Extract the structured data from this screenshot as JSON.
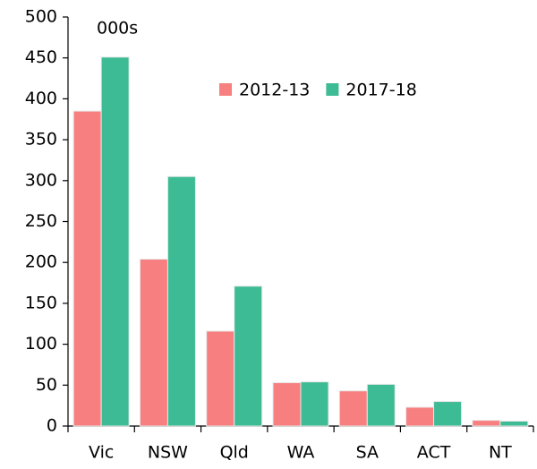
{
  "chart_data": {
    "type": "bar",
    "annotation": "000s",
    "categories": [
      "Vic",
      "NSW",
      "Qld",
      "WA",
      "SA",
      "ACT",
      "NT"
    ],
    "series": [
      {
        "name": "2012-13",
        "color": "#f77f80",
        "values": [
          385,
          204,
          116,
          53,
          43,
          23,
          7
        ]
      },
      {
        "name": "2017-18",
        "color": "#3dbb94",
        "values": [
          451,
          305,
          171,
          54,
          51,
          30,
          6
        ]
      }
    ],
    "ylim": [
      0,
      500
    ],
    "yticks": [
      0,
      50,
      100,
      150,
      200,
      250,
      300,
      350,
      400,
      450,
      500
    ],
    "grid": false,
    "legend": "top-right"
  }
}
